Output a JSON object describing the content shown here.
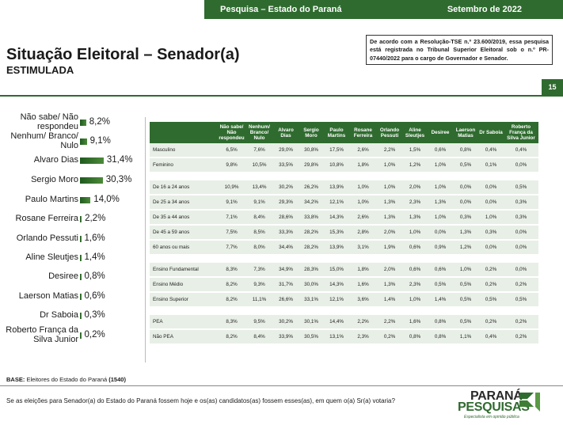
{
  "header": {
    "survey": "Pesquisa – Estado do Paraná",
    "date": "Setembro de 2022"
  },
  "title": "Situação Eleitoral – Senador(a)",
  "subtitle": "ESTIMULADA",
  "notice": "De acordo com a Resolução-TSE n.º 23.600/2019, essa pesquisa está registrada no Tribunal Superior Eleitoral sob o n.º PR-07440/2022 para o cargo de Governador e Senador.",
  "page_number": "15",
  "colors": {
    "accent": "#2f6b2f",
    "row_bg": "#e8efe6"
  },
  "chart_data": {
    "type": "bar",
    "orientation": "horizontal",
    "categories": [
      "Não sabe/ Não respondeu",
      "Nenhum/ Branco/ Nulo",
      "Alvaro Dias",
      "Sergio Moro",
      "Paulo Martins",
      "Rosane Ferreira",
      "Orlando Pessuti",
      "Aline Sleutjes",
      "Desiree",
      "Laerson Matias",
      "Dr Saboia",
      "Roberto França da Silva Junior"
    ],
    "values": [
      8.2,
      9.1,
      31.4,
      30.3,
      14.0,
      2.2,
      1.6,
      1.4,
      0.8,
      0.6,
      0.3,
      0.2
    ],
    "labels": [
      "8,2%",
      "9,1%",
      "31,4%",
      "30,3%",
      "14,0%",
      "2,2%",
      "1,6%",
      "1,4%",
      "0,8%",
      "0,6%",
      "0,3%",
      "0,2%"
    ],
    "title": "",
    "xlabel": "",
    "ylabel": "",
    "xlim": [
      0,
      100
    ]
  },
  "table": {
    "headers": [
      "",
      "Não sabe/ Não respondeu",
      "Nenhum/ Branco/ Nulo",
      "Alvaro Dias",
      "Sergio Moro",
      "Paulo Martins",
      "Rosane Ferreira",
      "Orlando Pessuti",
      "Aline Sleutjes",
      "Desiree",
      "Laerson Matias",
      "Dr Saboia",
      "Roberto França da Silva Junior"
    ],
    "groups": [
      [
        [
          "Masculino",
          "6,5%",
          "7,6%",
          "29,0%",
          "30,8%",
          "17,5%",
          "2,6%",
          "2,2%",
          "1,5%",
          "0,6%",
          "0,8%",
          "0,4%",
          "0,4%"
        ],
        [
          "Feminino",
          "9,8%",
          "10,5%",
          "33,5%",
          "29,8%",
          "10,8%",
          "1,8%",
          "1,0%",
          "1,2%",
          "1,0%",
          "0,5%",
          "0,1%",
          "0,0%"
        ]
      ],
      [
        [
          "De 16 a 24 anos",
          "10,9%",
          "13,4%",
          "30,2%",
          "26,2%",
          "13,9%",
          "1,0%",
          "1,0%",
          "2,0%",
          "1,0%",
          "0,0%",
          "0,0%",
          "0,5%"
        ],
        [
          "De 25 a 34 anos",
          "9,1%",
          "9,1%",
          "29,3%",
          "34,2%",
          "12,1%",
          "1,0%",
          "1,3%",
          "2,3%",
          "1,3%",
          "0,0%",
          "0,0%",
          "0,3%"
        ],
        [
          "De 35 a 44 anos",
          "7,1%",
          "8,4%",
          "28,6%",
          "33,8%",
          "14,3%",
          "2,6%",
          "1,3%",
          "1,3%",
          "1,0%",
          "0,3%",
          "1,0%",
          "0,3%"
        ],
        [
          "De 45 a 59 anos",
          "7,5%",
          "8,5%",
          "33,3%",
          "28,2%",
          "15,3%",
          "2,8%",
          "2,0%",
          "1,0%",
          "0,0%",
          "1,3%",
          "0,3%",
          "0,0%"
        ],
        [
          "60 anos ou mais",
          "7,7%",
          "8,0%",
          "34,4%",
          "28,2%",
          "13,9%",
          "3,1%",
          "1,9%",
          "0,6%",
          "0,9%",
          "1,2%",
          "0,0%",
          "0,0%"
        ]
      ],
      [
        [
          "Ensino Fundamental",
          "8,3%",
          "7,3%",
          "34,9%",
          "28,3%",
          "15,0%",
          "1,8%",
          "2,0%",
          "0,6%",
          "0,6%",
          "1,0%",
          "0,2%",
          "0,0%"
        ],
        [
          "Ensino Médio",
          "8,2%",
          "9,3%",
          "31,7%",
          "30,0%",
          "14,3%",
          "1,6%",
          "1,3%",
          "2,3%",
          "0,5%",
          "0,5%",
          "0,2%",
          "0,2%"
        ],
        [
          "Ensino Superior",
          "8,2%",
          "11,1%",
          "26,6%",
          "33,1%",
          "12,1%",
          "3,6%",
          "1,4%",
          "1,0%",
          "1,4%",
          "0,5%",
          "0,5%",
          "0,5%"
        ]
      ],
      [
        [
          "PEA",
          "8,3%",
          "9,5%",
          "30,2%",
          "30,1%",
          "14,4%",
          "2,2%",
          "2,2%",
          "1,6%",
          "0,8%",
          "0,5%",
          "0,2%",
          "0,2%"
        ],
        [
          "Não PEA",
          "8,2%",
          "8,4%",
          "33,9%",
          "30,5%",
          "13,1%",
          "2,3%",
          "0,2%",
          "0,8%",
          "0,8%",
          "1,1%",
          "0,4%",
          "0,2%"
        ]
      ]
    ]
  },
  "base_label": "BASE:",
  "base_text": "Eleitores do Estado do Paraná",
  "base_count": "(1540)",
  "question": "Se as eleições para Senador(a) do Estado do Paraná fossem hoje e os(as) candidatos(as) fossem esses(as), em quem o(a) Sr(a) votaria?",
  "logo": {
    "line1": "PARANÁ",
    "line2": "PESQUISAS",
    "tagline": "Especialista em opinião pública"
  }
}
